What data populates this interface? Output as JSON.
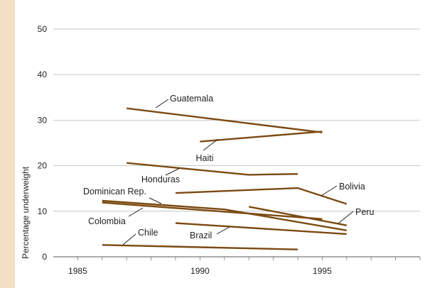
{
  "chart_data": {
    "type": "line",
    "title": "",
    "xlabel": "",
    "ylabel": "Percentage underweight",
    "xlim": [
      1984,
      1999
    ],
    "ylim": [
      0,
      50
    ],
    "x_ticks": [
      "1985",
      "1990",
      "1995"
    ],
    "y_ticks": [
      "0",
      "10",
      "20",
      "30",
      "40",
      "50"
    ],
    "grid": "horizontal",
    "line_color": "#7b4a12",
    "series": [
      {
        "name": "Guatemala",
        "points": [
          [
            1987,
            32.6
          ],
          [
            1995,
            27.3
          ]
        ]
      },
      {
        "name": "Haiti",
        "points": [
          [
            1990,
            25.3
          ],
          [
            1995,
            27.5
          ]
        ]
      },
      {
        "name": "Honduras",
        "points": [
          [
            1987,
            20.6
          ],
          [
            1992,
            18.0
          ],
          [
            1994,
            18.2
          ]
        ]
      },
      {
        "name": "Bolivia",
        "points": [
          [
            1989,
            14.0
          ],
          [
            1994,
            15.1
          ],
          [
            1996,
            11.6
          ]
        ]
      },
      {
        "name": "Dominican Rep.",
        "points": [
          [
            1986,
            12.3
          ],
          [
            1991,
            10.4
          ],
          [
            1996,
            5.8
          ]
        ]
      },
      {
        "name": "Colombia",
        "points": [
          [
            1986,
            11.9
          ],
          [
            1995,
            8.3
          ]
        ]
      },
      {
        "name": "Peru",
        "points": [
          [
            1992,
            11.0
          ],
          [
            1996,
            6.9
          ]
        ]
      },
      {
        "name": "Brazil",
        "points": [
          [
            1989,
            7.4
          ],
          [
            1996,
            5.0
          ]
        ]
      },
      {
        "name": "Chile",
        "points": [
          [
            1986,
            2.6
          ],
          [
            1994,
            1.6
          ]
        ]
      }
    ]
  }
}
